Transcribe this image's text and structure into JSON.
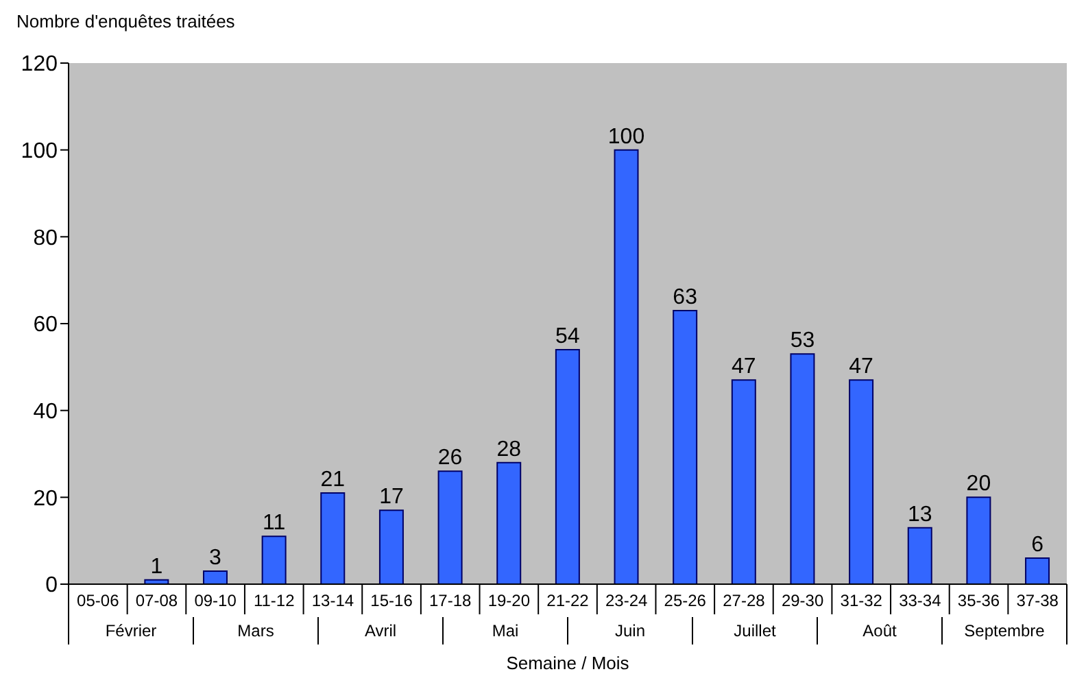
{
  "chart_data": {
    "type": "bar",
    "ylabel": "Nombre d'enquêtes traitées",
    "xlabel": "Semaine /  Mois",
    "categories": [
      "05-06",
      "07-08",
      "09-10",
      "11-12",
      "13-14",
      "15-16",
      "17-18",
      "19-20",
      "21-22",
      "23-24",
      "25-26",
      "27-28",
      "29-30",
      "31-32",
      "33-34",
      "35-36",
      "37-38"
    ],
    "values": [
      0,
      1,
      3,
      11,
      21,
      17,
      26,
      28,
      54,
      100,
      63,
      47,
      53,
      47,
      13,
      20,
      6
    ],
    "value_labels": [
      null,
      "1",
      "3",
      "11",
      "21",
      "17",
      "26",
      "28",
      "54",
      "100",
      "63",
      "47",
      "53",
      "47",
      "13",
      "20",
      "6"
    ],
    "color": "#3366ff",
    "ylim": [
      0,
      120
    ],
    "yticks": [
      0,
      20,
      40,
      60,
      80,
      100,
      120
    ],
    "annotations": [
      "Février",
      "Mars",
      "Avril",
      "Mai",
      "Juin",
      "Juillet",
      "Août",
      "Septembre"
    ]
  }
}
